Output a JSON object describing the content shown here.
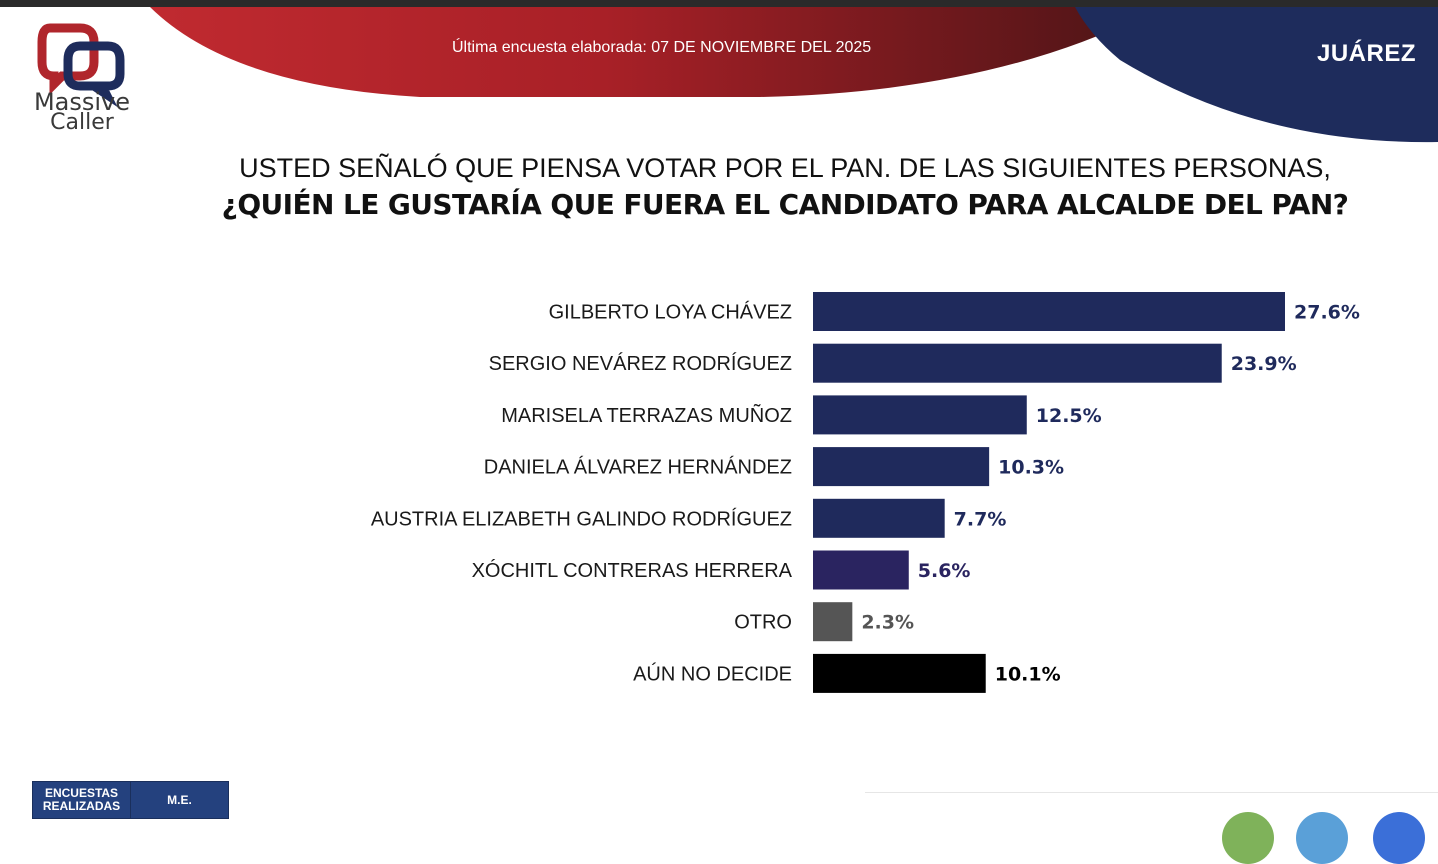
{
  "header": {
    "survey_date": "Última encuesta elaborada: 07 DE NOVIEMBRE DEL 2025",
    "city": "JUÁREZ",
    "logo_line1": "Massive",
    "logo_line2": "Caller",
    "colors": {
      "red": "#b3232b",
      "dark_red": "#5a1a1c",
      "navy": "#1e2c5c"
    }
  },
  "question": {
    "line1": "USTED SEÑALÓ QUE PIENSA VOTAR POR EL PAN. DE LAS SIGUIENTES PERSONAS,",
    "line2": "¿QUIÉN LE GUSTARÍA QUE FUERA EL CANDIDATO PARA ALCALDE DEL PAN?"
  },
  "chart_data": {
    "type": "bar",
    "orientation": "horizontal",
    "categories": [
      "GILBERTO LOYA CHÁVEZ",
      "SERGIO NEVÁREZ RODRÍGUEZ",
      "MARISELA TERRAZAS MUÑOZ",
      "DANIELA ÁLVAREZ HERNÁNDEZ",
      "AUSTRIA ELIZABETH GALINDO RODRÍGUEZ",
      "XÓCHITL CONTRERAS HERRERA",
      "OTRO",
      "AÚN NO DECIDE"
    ],
    "values": [
      27.6,
      23.9,
      12.5,
      10.3,
      7.7,
      5.6,
      2.3,
      10.1
    ],
    "value_labels": [
      "27.6%",
      "23.9%",
      "12.5%",
      "10.3%",
      "7.7%",
      "5.6%",
      "2.3%",
      "10.1%"
    ],
    "colors": [
      "#1f2a5c",
      "#1f2a5c",
      "#1f2a5c",
      "#1f2a5c",
      "#1f2a5c",
      "#2a2460",
      "#555555",
      "#000000"
    ],
    "label_colors": [
      "#1f2a5c",
      "#1f2a5c",
      "#1f2a5c",
      "#1f2a5c",
      "#1f2a5c",
      "#2a2460",
      "#555555",
      "#000000"
    ],
    "xlim": [
      0,
      27.6
    ],
    "grid": false,
    "legend": "none"
  },
  "table": {
    "col1_line1": "ENCUESTAS",
    "col1_line2": "REALIZADAS",
    "col2": "M.E."
  }
}
